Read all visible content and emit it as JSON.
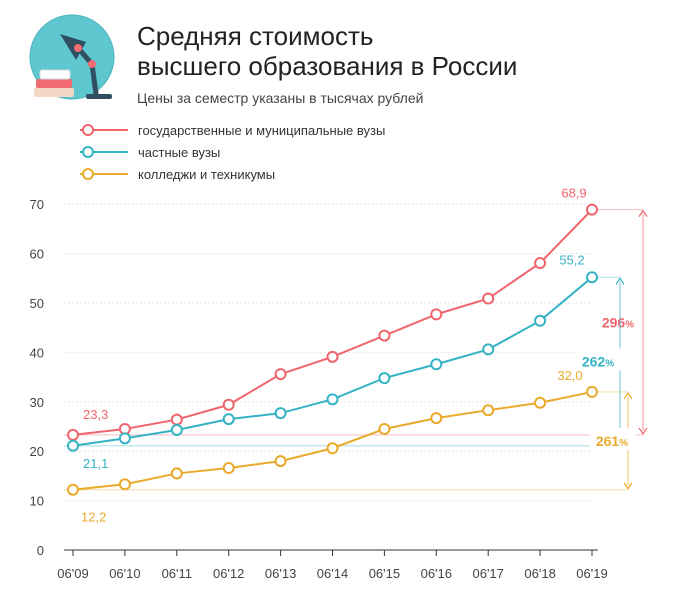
{
  "chart_data": {
    "type": "line",
    "title_line1": "Средняя стоимость",
    "title_line2": "высшего образования в России",
    "subtitle": "Цены за семестр указаны в тысячах рублей",
    "categories": [
      "06'09",
      "06'10",
      "06'11",
      "06'12",
      "06'13",
      "06'14",
      "06'15",
      "06'16",
      "06'17",
      "06'18",
      "06'19"
    ],
    "yticks": [
      0,
      10,
      20,
      30,
      40,
      50,
      60,
      70
    ],
    "ylim": [
      0,
      70
    ],
    "series": [
      {
        "name": "государственные и муниципальные вузы",
        "color": "#f0656d",
        "values": [
          23.3,
          24.5,
          26.4,
          29.4,
          35.6,
          39.1,
          43.4,
          47.7,
          50.9,
          58.1,
          68.9
        ],
        "first_label": "23,3",
        "last_label": "68,9",
        "growth_number": "296",
        "growth_unit": "%"
      },
      {
        "name": "частные вузы",
        "color": "#34b3c4",
        "values": [
          21.1,
          22.6,
          24.3,
          26.5,
          27.7,
          30.5,
          34.8,
          37.6,
          40.6,
          46.4,
          55.2
        ],
        "first_label": "21,1",
        "last_label": "55,2",
        "growth_number": "262",
        "growth_unit": "%"
      },
      {
        "name": "колледжи и техникумы",
        "color": "#e9a92a",
        "values": [
          12.2,
          13.3,
          15.5,
          16.6,
          18.0,
          20.6,
          24.5,
          26.7,
          28.3,
          29.8,
          32.0
        ],
        "first_label": "12,2",
        "last_label": "32,0",
        "growth_number": "261",
        "growth_unit": "%"
      }
    ]
  }
}
